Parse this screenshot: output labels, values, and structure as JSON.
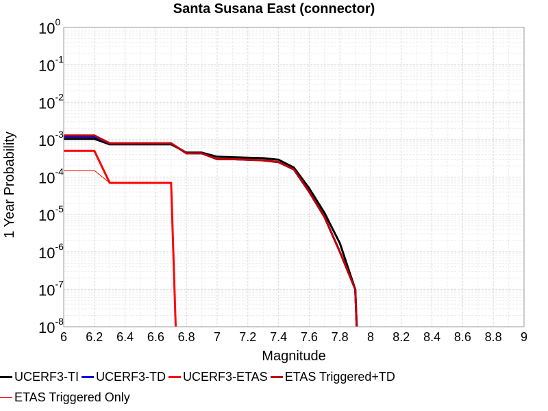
{
  "chart_data": {
    "type": "line",
    "title": "Santa Susana East (connector)",
    "xlabel": "Magnitude",
    "ylabel": "1 Year Probability",
    "xlim": [
      6,
      9
    ],
    "ylim": [
      1e-08,
      1
    ],
    "y_scale": "log",
    "grid": true,
    "x_ticks": [
      "6",
      "6.2",
      "6.4",
      "6.6",
      "6.8",
      "7",
      "7.2",
      "7.4",
      "7.6",
      "7.8",
      "8",
      "8.2",
      "8.4",
      "8.6",
      "8.8",
      "9"
    ],
    "y_ticks": [
      {
        "base": "10",
        "exp": "0"
      },
      {
        "base": "10",
        "exp": "-1"
      },
      {
        "base": "10",
        "exp": "-2"
      },
      {
        "base": "10",
        "exp": "-3"
      },
      {
        "base": "10",
        "exp": "-4"
      },
      {
        "base": "10",
        "exp": "-5"
      },
      {
        "base": "10",
        "exp": "-6"
      },
      {
        "base": "10",
        "exp": "-7"
      },
      {
        "base": "10",
        "exp": "-8"
      }
    ],
    "legend_position": "bottom",
    "series": [
      {
        "name": "UCERF3-TI",
        "color": "#000000",
        "width": 3,
        "x": [
          6.0,
          6.2,
          6.3,
          6.7,
          6.8,
          6.9,
          7.0,
          7.1,
          7.2,
          7.3,
          7.4,
          7.5,
          7.6,
          7.7,
          7.8,
          7.9,
          7.91
        ],
        "y": [
          0.00105,
          0.00105,
          0.00075,
          0.00075,
          0.00045,
          0.00045,
          0.00035,
          0.00034,
          0.00033,
          0.00032,
          0.00029,
          0.00018,
          5e-05,
          1.1e-05,
          1.7e-06,
          1e-07,
          1e-08
        ]
      },
      {
        "name": "UCERF3-TD",
        "color": "#0000dd",
        "width": 3,
        "x": [
          6.0,
          6.2,
          6.3,
          6.7,
          6.8,
          6.9,
          7.0,
          7.1,
          7.2,
          7.3,
          7.4,
          7.5,
          7.6,
          7.7,
          7.8,
          7.9,
          7.91
        ],
        "y": [
          0.0012,
          0.0012,
          0.0008,
          0.0008,
          0.00043,
          0.00043,
          0.0003,
          0.0003,
          0.00029,
          0.00028,
          0.00025,
          0.00016,
          4e-05,
          8.5e-06,
          1e-06,
          1e-07,
          1e-08
        ]
      },
      {
        "name": "UCERF3-ETAS",
        "color": "#ff0000",
        "width": 3,
        "x": [
          6.0,
          6.2,
          6.3,
          6.7,
          6.73
        ],
        "y": [
          0.0005,
          0.0005,
          7e-05,
          7e-05,
          1e-08
        ]
      },
      {
        "name": "ETAS Triggered+TD",
        "color": "#c00000",
        "width": 3,
        "x": [
          6.0,
          6.2,
          6.3,
          6.7,
          6.8,
          6.9,
          7.0,
          7.1,
          7.2,
          7.3,
          7.4,
          7.5,
          7.6,
          7.7,
          7.8,
          7.9,
          7.91
        ],
        "y": [
          0.0013,
          0.0013,
          0.0008,
          0.0008,
          0.00043,
          0.00043,
          0.0003,
          0.0003,
          0.00029,
          0.00028,
          0.00025,
          0.00016,
          4e-05,
          8.5e-06,
          1e-06,
          1e-07,
          1e-08
        ]
      },
      {
        "name": "ETAS Triggered Only",
        "color": "#ff0000",
        "width": 1,
        "x": [
          6.0,
          6.2,
          6.3,
          6.7,
          6.73
        ],
        "y": [
          0.00015,
          0.00015,
          7e-05,
          7e-05,
          1e-08
        ]
      }
    ]
  }
}
